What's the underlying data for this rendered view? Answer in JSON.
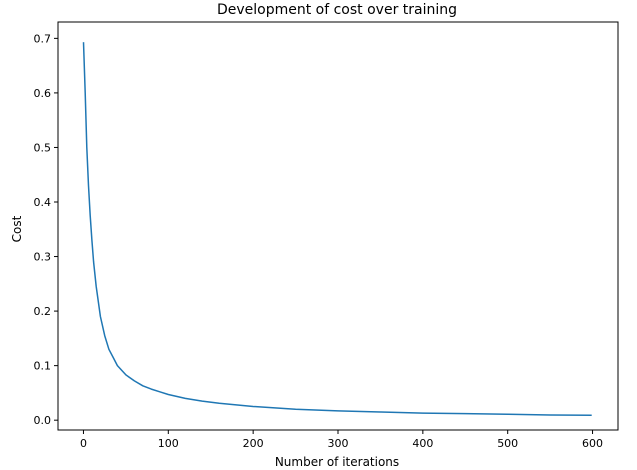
{
  "chart_data": {
    "type": "line",
    "title": "Development of cost over training",
    "xlabel": "Number of iterations",
    "ylabel": "Cost",
    "xlim": [
      -30,
      630
    ],
    "ylim": [
      -0.018,
      0.73
    ],
    "xticks": [
      0,
      100,
      200,
      300,
      400,
      500,
      600
    ],
    "yticks": [
      0.0,
      0.1,
      0.2,
      0.3,
      0.4,
      0.5,
      0.6,
      0.7
    ],
    "xtick_labels": [
      "0",
      "100",
      "200",
      "300",
      "400",
      "500",
      "600"
    ],
    "ytick_labels": [
      "0.0",
      "0.1",
      "0.2",
      "0.3",
      "0.4",
      "0.5",
      "0.6",
      "0.7"
    ],
    "grid": false,
    "series": [
      {
        "color": "#1f77b4",
        "x": [
          0,
          2,
          4,
          6,
          8,
          10,
          12,
          15,
          20,
          25,
          30,
          35,
          40,
          50,
          60,
          70,
          80,
          90,
          100,
          120,
          140,
          160,
          180,
          200,
          250,
          300,
          350,
          400,
          450,
          500,
          550,
          599
        ],
        "y": [
          0.693,
          0.6,
          0.5,
          0.43,
          0.375,
          0.33,
          0.29,
          0.245,
          0.19,
          0.155,
          0.13,
          0.115,
          0.1,
          0.083,
          0.072,
          0.063,
          0.057,
          0.052,
          0.047,
          0.04,
          0.035,
          0.031,
          0.028,
          0.025,
          0.02,
          0.017,
          0.015,
          0.013,
          0.012,
          0.011,
          0.0095,
          0.009
        ]
      }
    ]
  }
}
